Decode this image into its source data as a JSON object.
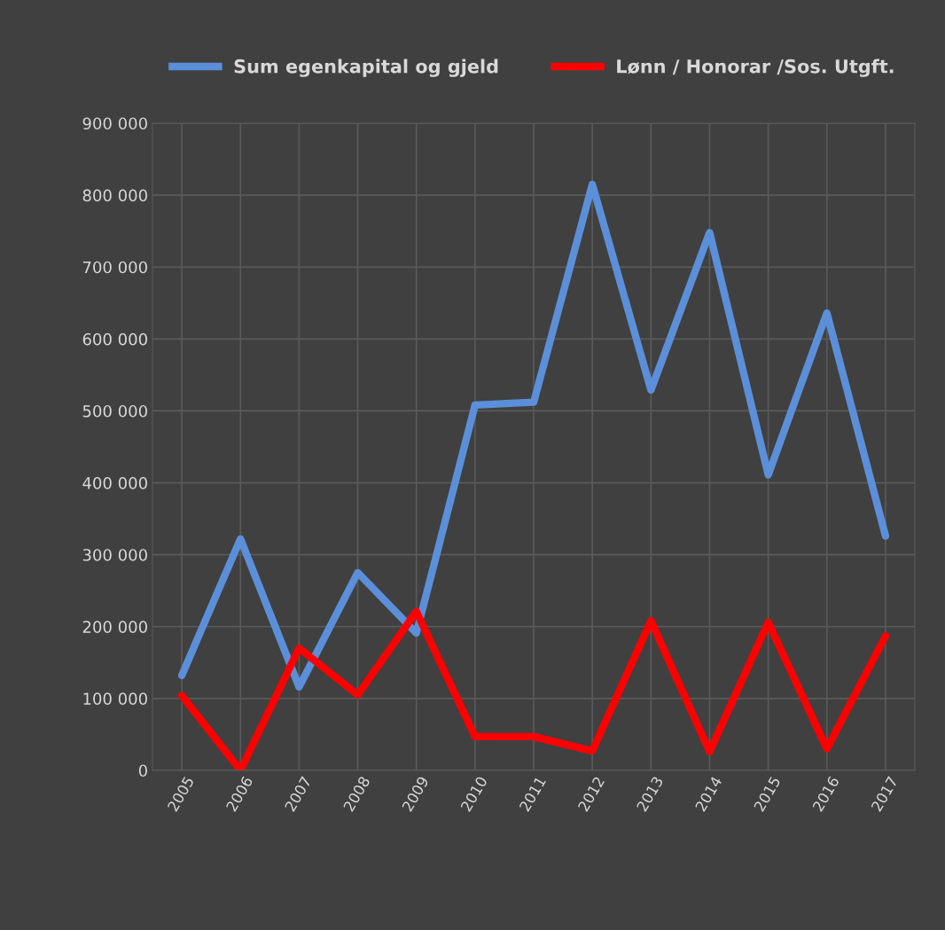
{
  "chart_data": {
    "type": "line",
    "categories": [
      "2005",
      "2006",
      "2007",
      "2008",
      "2009",
      "2010",
      "2011",
      "2012",
      "2013",
      "2014",
      "2015",
      "2016",
      "2017"
    ],
    "series": [
      {
        "name": "Sum egenkapital og gjeld",
        "color": "#5b8fd9",
        "values": [
          132000,
          322000,
          116000,
          275000,
          191000,
          508000,
          512000,
          815000,
          529000,
          748000,
          411000,
          636000,
          326000
        ]
      },
      {
        "name": "Lønn / Honorar /Sos. Utgft.",
        "color": "#ff0000",
        "values": [
          104000,
          0,
          170000,
          105000,
          221000,
          47000,
          47000,
          27000,
          208000,
          26000,
          206000,
          30000,
          187000
        ]
      }
    ],
    "ylim": [
      0,
      900000
    ],
    "yticks": [
      {
        "value": 0,
        "label": "0"
      },
      {
        "value": 100000,
        "label": "100 000"
      },
      {
        "value": 200000,
        "label": "200 000"
      },
      {
        "value": 300000,
        "label": "300 000"
      },
      {
        "value": 400000,
        "label": "400 000"
      },
      {
        "value": 500000,
        "label": "500 000"
      },
      {
        "value": 600000,
        "label": "600 000"
      },
      {
        "value": 700000,
        "label": "700 000"
      },
      {
        "value": 800000,
        "label": "800 000"
      },
      {
        "value": 900000,
        "label": "900 000"
      }
    ],
    "grid": true,
    "legend": "top",
    "marker": "none",
    "line_style": "solid"
  }
}
